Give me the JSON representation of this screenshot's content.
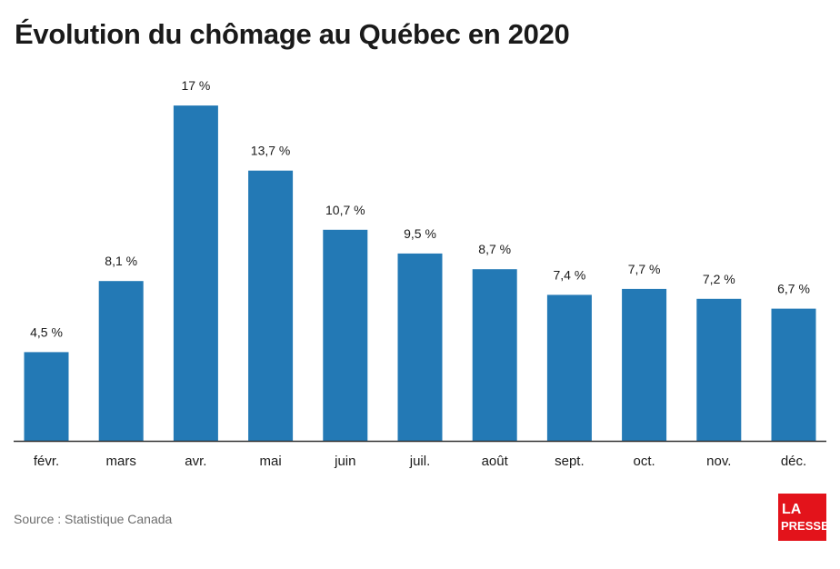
{
  "title": "Évolution du chômage au Québec en 2020",
  "source": "Source : Statistique Canada",
  "logo": {
    "text": "LA PRESSE",
    "line1": "LA",
    "line2": "PRESSE",
    "color": "#e3131b"
  },
  "colors": {
    "bar": "#2379b5",
    "axis": "#333333",
    "text": "#1a1a1a"
  },
  "chart_data": {
    "type": "bar",
    "title": "Évolution du chômage au Québec en 2020",
    "xlabel": "",
    "ylabel": "",
    "ylim": [
      0,
      17
    ],
    "grid": false,
    "categories": [
      "févr.",
      "mars",
      "avr.",
      "mai",
      "juin",
      "juil.",
      "août",
      "sept.",
      "oct.",
      "nov.",
      "déc."
    ],
    "values": [
      4.5,
      8.1,
      17,
      13.7,
      10.7,
      9.5,
      8.7,
      7.4,
      7.7,
      7.2,
      6.7
    ],
    "value_labels": [
      "4,5 %",
      "8,1 %",
      "17 %",
      "13,7 %",
      "10,7 %",
      "9,5 %",
      "8,7 %",
      "7,4 %",
      "7,7 %",
      "7,2 %",
      "6,7 %"
    ]
  }
}
